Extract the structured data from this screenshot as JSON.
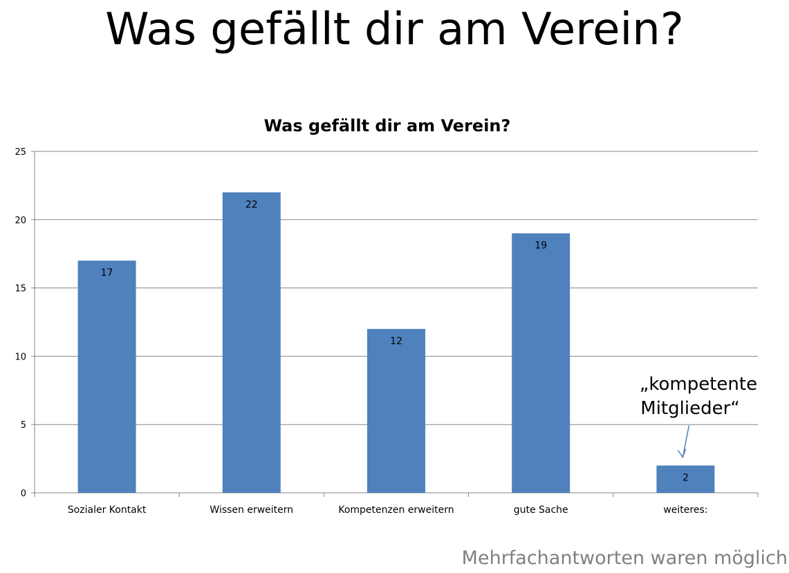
{
  "slide": {
    "title": "Was gefällt dir am Verein?",
    "footnote": "Mehrfachantworten waren möglich"
  },
  "chart_data": {
    "type": "bar",
    "title": "Was gefällt dir am Verein?",
    "categories": [
      "Sozialer Kontakt",
      "Wissen erweitern",
      "Kompetenzen erweitern",
      "gute Sache",
      "weiteres:"
    ],
    "values": [
      17,
      22,
      12,
      19,
      2
    ],
    "ylim": [
      0,
      25
    ],
    "yticks": [
      0,
      5,
      10,
      15,
      20,
      25
    ],
    "grid": true,
    "legend": "none",
    "bar_color": "#4F81BD",
    "annotation": {
      "line1": "„kompetente",
      "line2": "Mitglieder“",
      "target_category": "weiteres:"
    }
  }
}
